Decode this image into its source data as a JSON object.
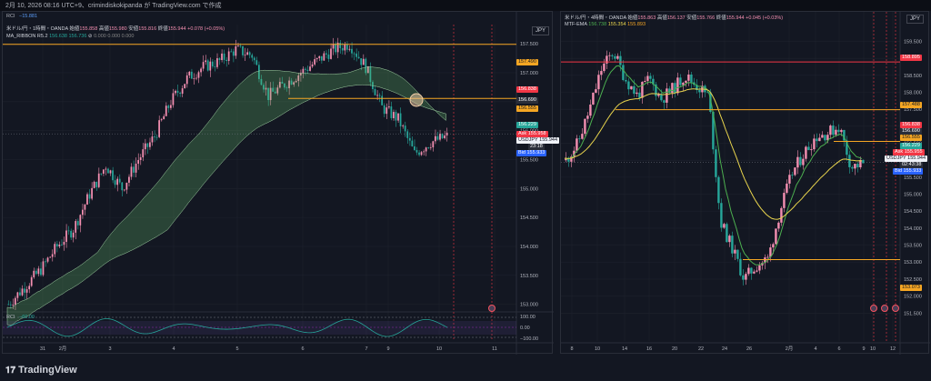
{
  "header": {
    "text": "2月 10, 2026 08:16 UTC+9、crimindiskokipanda が TradingView.com で作成"
  },
  "left": {
    "rci_top_label": "RCI",
    "rci_top_value": "−15.881",
    "title": "米ドル/円・1時間・OANDA",
    "ohlc": {
      "open_label": "始値",
      "open": "155.858",
      "high_label": "高値",
      "high": "155.980",
      "low_label": "安値",
      "low": "155.816",
      "close_label": "終値",
      "close": "155.944",
      "change": "+0.078 (+0.05%)"
    },
    "indicator": {
      "name": "MA_RIBBON R5.2",
      "v1": "156.638",
      "v2": "156.736",
      "v3": "0.000",
      "v4": "0.000",
      "v5": "0.000"
    },
    "currency": "JPY",
    "price_axis": [
      "157.500",
      "157.000",
      "156.500",
      "156.000",
      "155.500",
      "155.000",
      "154.500",
      "154.000",
      "153.500",
      "153.000"
    ],
    "tags": {
      "t1": "157.490",
      "t2": "156.838",
      "t3": "156.690",
      "t4": "156.555",
      "t5": "156.229",
      "ask": "155.958",
      "usdjpy": "155.944",
      "cd": "23:18",
      "bid": "155.933"
    },
    "tag_labels": {
      "ask": "Ask",
      "sym": "USDJPY",
      "bid": "Bid"
    },
    "rci_label": "RCI",
    "rci_value": "−60.00",
    "rci_axis": [
      "100.00",
      "0.00",
      "−100.00"
    ],
    "time_axis": [
      "31",
      "2月",
      "3",
      "4",
      "5",
      "6",
      "7",
      "9",
      "10",
      "11"
    ]
  },
  "right": {
    "title": "米ドル/円・4時間・OANDA",
    "ohlc": {
      "open_label": "始値",
      "open": "155.863",
      "high_label": "高値",
      "high": "156.137",
      "low_label": "安値",
      "low": "155.766",
      "close_label": "終値",
      "close": "155.944",
      "change": "+0.045 (+0.03%)"
    },
    "indicator": {
      "name": "MTF-EMA",
      "v1": "156.738",
      "v2": "155.354",
      "v3": "155.893"
    },
    "currency": "JPY",
    "price_axis": [
      "159.500",
      "159.000",
      "158.500",
      "158.000",
      "157.500",
      "157.000",
      "156.500",
      "156.000",
      "155.500",
      "155.000",
      "154.500",
      "154.000",
      "153.500",
      "153.000",
      "152.500",
      "152.000",
      "151.500"
    ],
    "tags": {
      "t0": "158.895",
      "t1": "157.488",
      "t2": "156.838",
      "t3": "156.690",
      "t4": "156.555",
      "t5": "156.229",
      "ask": "155.955",
      "usdjpy": "155.944",
      "cd": "02:43:38",
      "bid": "155.933",
      "t6": "153.073"
    },
    "tag_labels": {
      "ask": "Ask",
      "sym": "USDJPY",
      "bid": "Bid"
    },
    "time_axis": [
      "8",
      "10",
      "14",
      "16",
      "20",
      "22",
      "24",
      "26",
      "2月",
      "4",
      "6",
      "9",
      "10",
      "12"
    ]
  },
  "footer": {
    "brand": "TradingView"
  },
  "colors": {
    "bull": "#f48fb1",
    "bear": "#26a69a",
    "orange": "#f5a623",
    "red": "#f23645",
    "yellow": "#e8d44d",
    "green": "#4caf50",
    "bg": "#131722"
  }
}
